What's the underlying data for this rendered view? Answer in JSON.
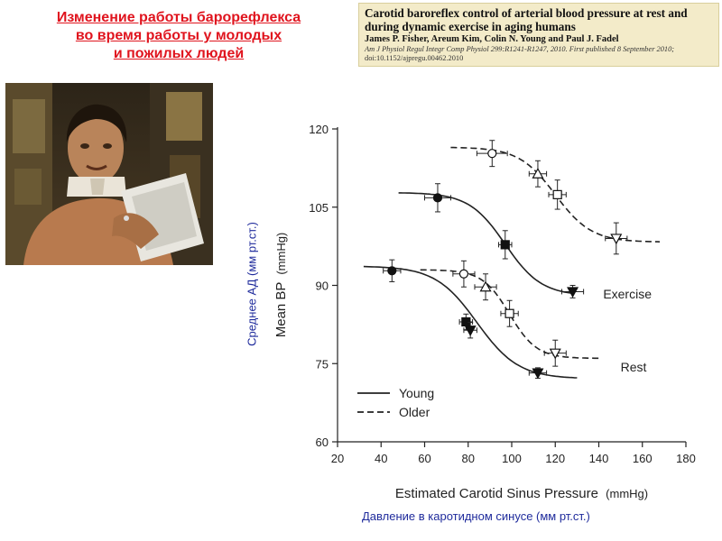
{
  "slide": {
    "title_lines": [
      "Изменение работы барорефлекса",
      "во время работы у молодых",
      "и пожилых людей"
    ],
    "ylabel_ru": "Среднее  АД (мм рт.ст.)",
    "xlabel_ru": "Давление в каротидном синусе (мм рт.ст.)",
    "title_color": "#e0141e",
    "label_color": "#1f2b9c"
  },
  "reference": {
    "title": "Carotid baroreflex control of arterial blood pressure at rest and during dynamic exercise in aging humans",
    "authors": "James P. Fisher, Areum Kim, Colin N. Young and Paul J. Fadel",
    "journal": "Am J Physiol Regul Integr Comp Physiol 299:R1241-R1247, 2010. First published 8 September 2010;",
    "doi": "doi:10.1152/ajpregu.00462.2010"
  },
  "photo": {
    "icon": "astronaut-photo"
  },
  "chart_data": {
    "type": "line",
    "xlabel": "Estimated Carotid Sinus Pressure",
    "xlabel_unit": "(mmHg)",
    "ylabel": "Mean BP",
    "ylabel_unit": "(mmHg)",
    "xlim": [
      20,
      180
    ],
    "ylim": [
      60,
      120
    ],
    "xticks": [
      "20",
      "40",
      "60",
      "80",
      "100",
      "120",
      "140",
      "160",
      "180"
    ],
    "yticks": [
      "60",
      "75",
      "90",
      "105",
      "120"
    ],
    "legend_position": "bottom-left",
    "legend": [
      {
        "label": "Young",
        "style": "solid"
      },
      {
        "label": "Older",
        "style": "dashed"
      }
    ],
    "annotations": [
      {
        "text": "Exercise",
        "x": 142,
        "y": 87.5
      },
      {
        "text": "Rest",
        "x": 150,
        "y": 73.5
      }
    ],
    "series": [
      {
        "condition": "Exercise",
        "group": "Young",
        "style": "solid",
        "curve": {
          "x_start": 48,
          "x_end": 128,
          "y_top": 107.8,
          "y_bottom": 88.0,
          "centering": 97,
          "slope": 0.12
        },
        "points": [
          {
            "x": 66,
            "y": 106.8,
            "xerr": 6,
            "yerr": 2.7,
            "marker": "circle",
            "filled": true
          },
          {
            "x": 97,
            "y": 97.8,
            "xerr": 3,
            "yerr": 2.7,
            "marker": "square",
            "filled": true
          },
          {
            "x": 128,
            "y": 88.8,
            "xerr": 5,
            "yerr": 1.2,
            "marker": "triangle-down",
            "filled": true
          }
        ]
      },
      {
        "condition": "Exercise",
        "group": "Older",
        "style": "dashed",
        "curve": {
          "x_start": 72,
          "x_end": 168,
          "y_top": 116.5,
          "y_bottom": 98.3,
          "centering": 120,
          "slope": 0.12
        },
        "points": [
          {
            "x": 91,
            "y": 115.3,
            "xerr": 7,
            "yerr": 2.5,
            "marker": "circle",
            "filled": false
          },
          {
            "x": 112,
            "y": 111.4,
            "xerr": 4,
            "yerr": 2.5,
            "marker": "triangle-up",
            "filled": false
          },
          {
            "x": 121,
            "y": 107.4,
            "xerr": 4,
            "yerr": 2.8,
            "marker": "square",
            "filled": false
          },
          {
            "x": 148,
            "y": 99.0,
            "xerr": 5,
            "yerr": 3.0,
            "marker": "triangle-down",
            "filled": false
          }
        ]
      },
      {
        "condition": "Rest",
        "group": "Young",
        "style": "solid",
        "curve": {
          "x_start": 32,
          "x_end": 130,
          "y_top": 93.7,
          "y_bottom": 72.1,
          "centering": 84,
          "slope": 0.105
        },
        "points": [
          {
            "x": 45,
            "y": 92.8,
            "xerr": 4,
            "yerr": 2.1,
            "marker": "circle",
            "filled": true
          },
          {
            "x": 79,
            "y": 83.0,
            "xerr": 3,
            "yerr": 1.5,
            "marker": "square",
            "filled": true
          },
          {
            "x": 81,
            "y": 81.4,
            "xerr": 3,
            "yerr": 1.5,
            "marker": "triangle-down",
            "filled": true
          },
          {
            "x": 112,
            "y": 73.2,
            "xerr": 4,
            "yerr": 1.0,
            "marker": "triangle-down",
            "filled": true
          }
        ]
      },
      {
        "condition": "Rest",
        "group": "Older",
        "style": "dashed",
        "curve": {
          "x_start": 58,
          "x_end": 140,
          "y_top": 93.0,
          "y_bottom": 76.0,
          "centering": 99,
          "slope": 0.16
        },
        "points": [
          {
            "x": 78,
            "y": 92.2,
            "xerr": 5,
            "yerr": 2.5,
            "marker": "circle",
            "filled": false
          },
          {
            "x": 88,
            "y": 89.7,
            "xerr": 5,
            "yerr": 2.5,
            "marker": "triangle-up",
            "filled": false
          },
          {
            "x": 99,
            "y": 84.6,
            "xerr": 4,
            "yerr": 2.5,
            "marker": "square",
            "filled": false
          },
          {
            "x": 120,
            "y": 77.0,
            "xerr": 5,
            "yerr": 2.5,
            "marker": "triangle-down",
            "filled": false
          }
        ]
      }
    ]
  }
}
